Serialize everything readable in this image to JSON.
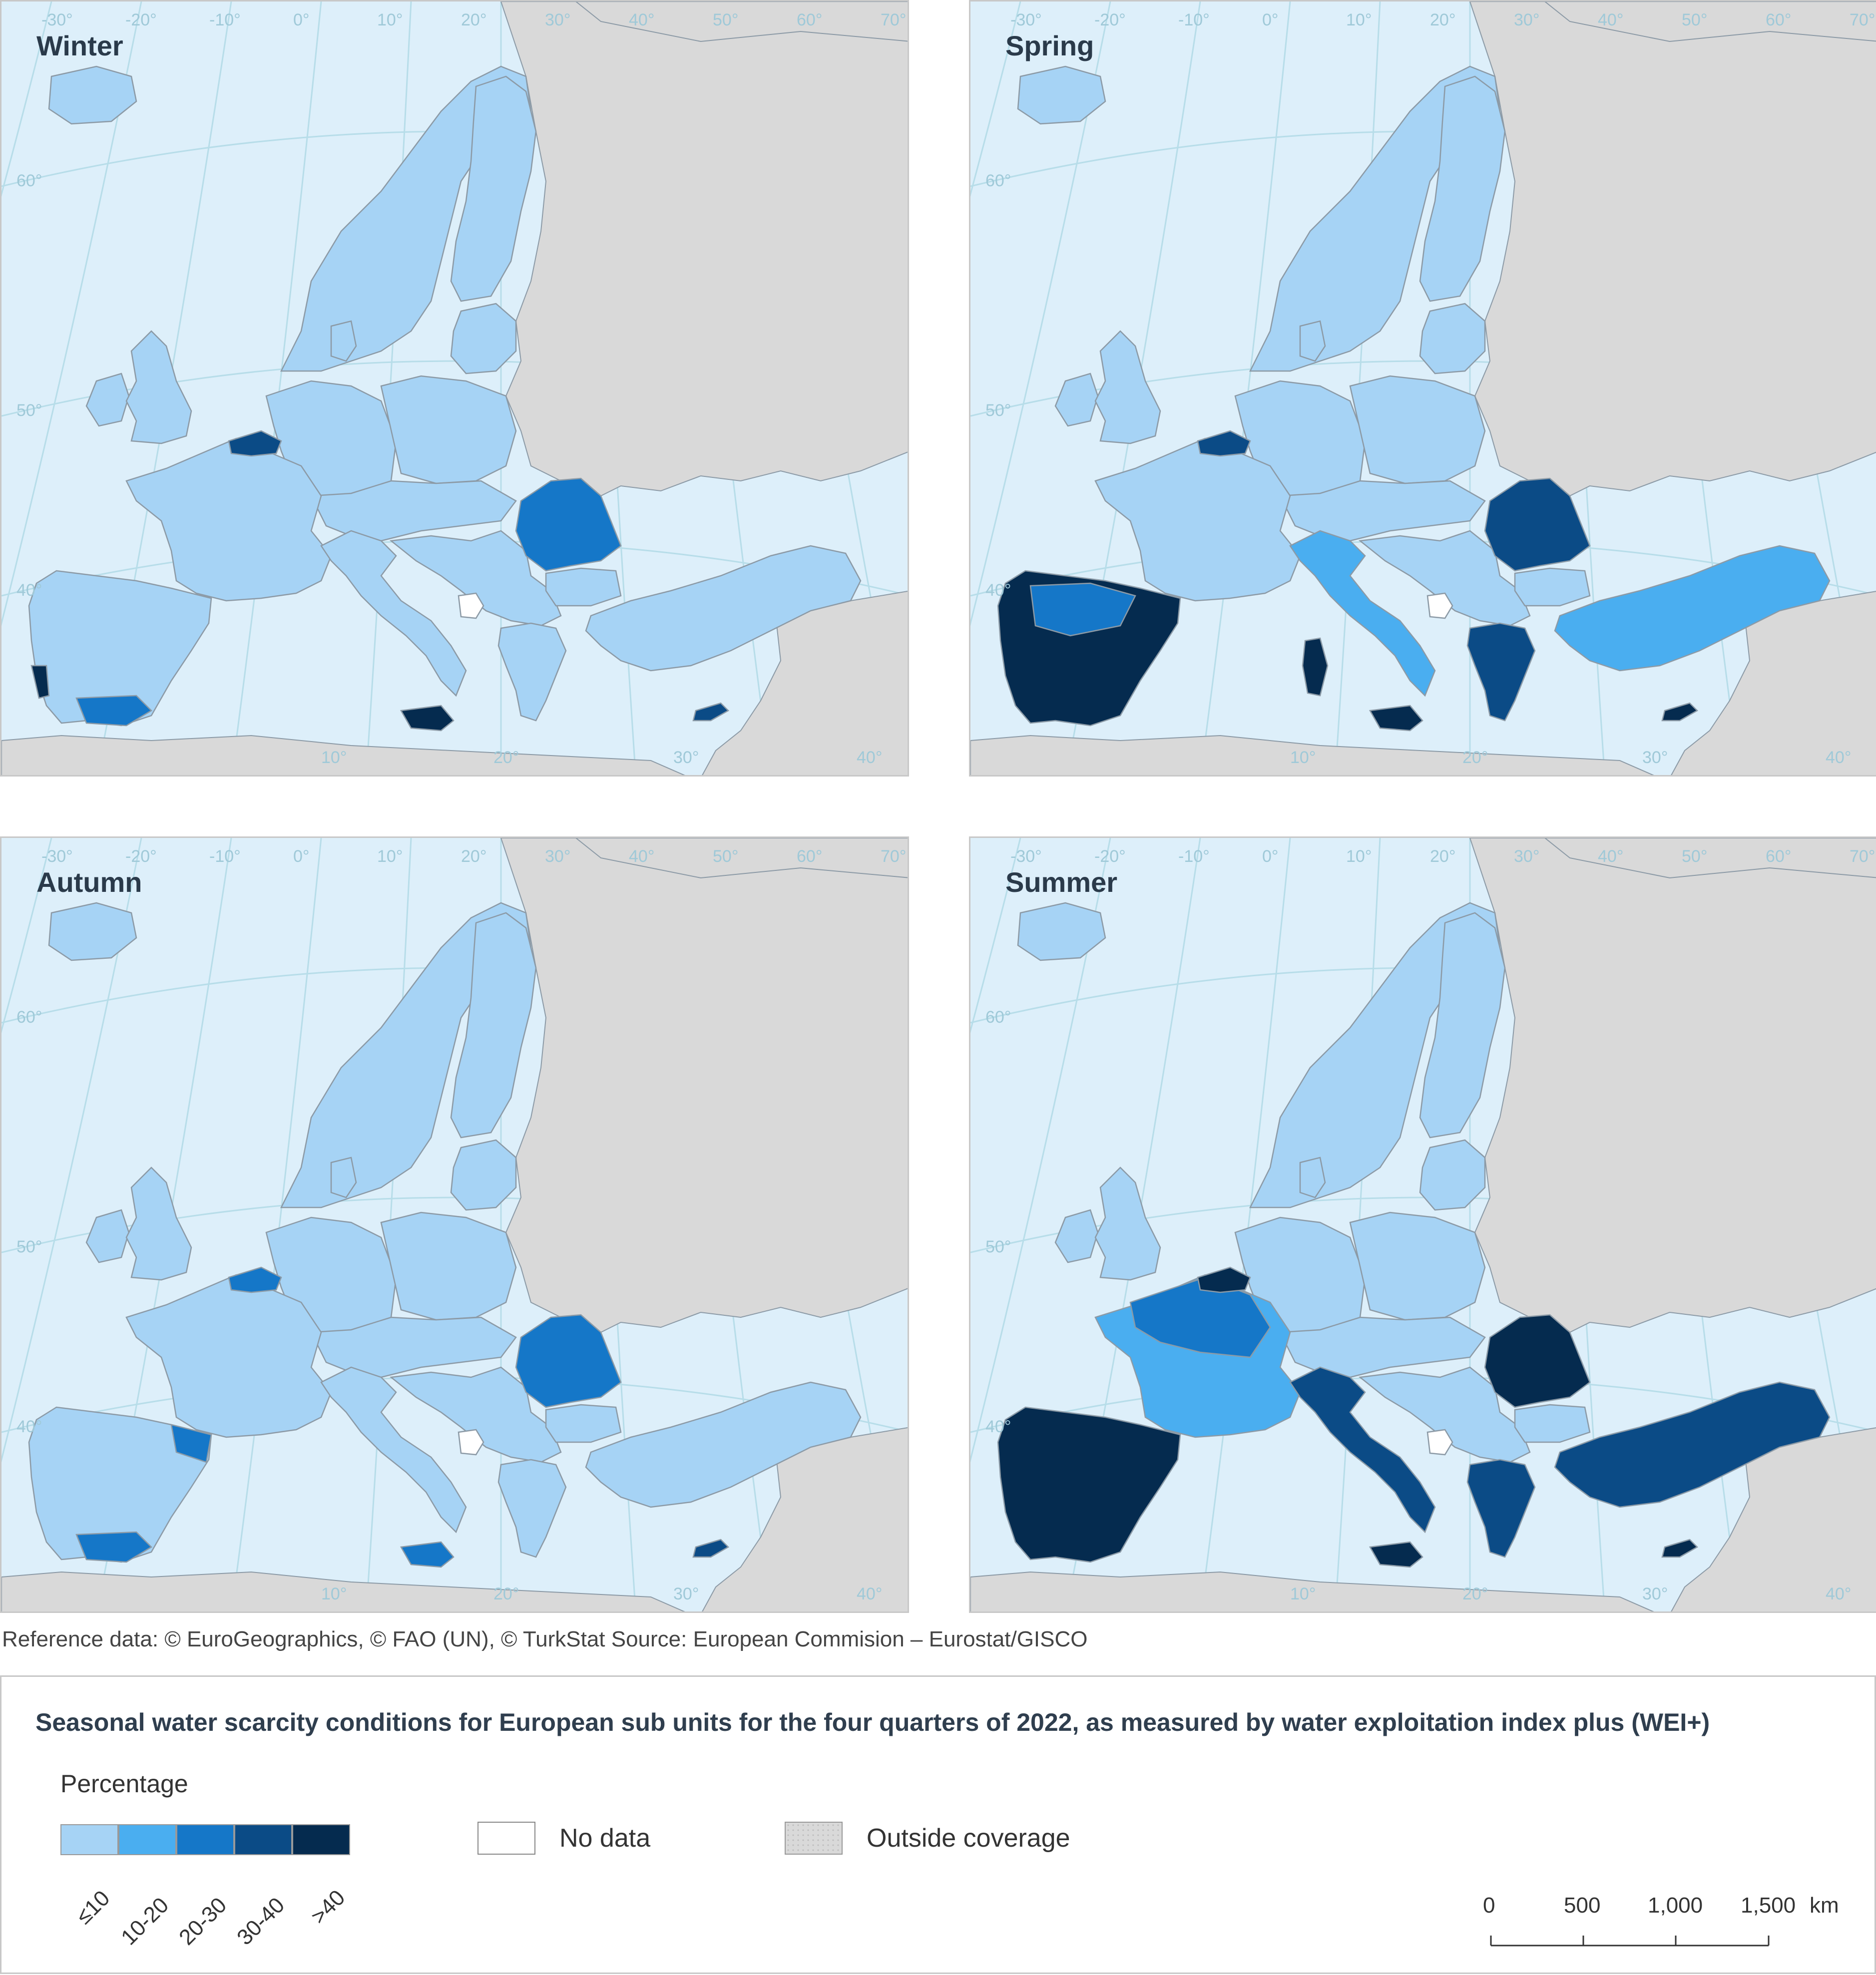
{
  "panels": [
    {
      "title": "Winter"
    },
    {
      "title": "Spring"
    },
    {
      "title": "Autumn"
    },
    {
      "title": "Summer"
    }
  ],
  "graticule": {
    "top_longitudes": [
      "-30°",
      "-20°",
      "-10°",
      "0°",
      "10°",
      "20°",
      "30°",
      "40°",
      "50°",
      "60°",
      "70°"
    ],
    "left_latitudes": [
      "60°",
      "50°",
      "40°"
    ],
    "bottom_longitudes": [
      "10°",
      "20°",
      "30°",
      "40°"
    ]
  },
  "source_text": "Reference data: © EuroGeographics, © FAO (UN), © TurkStat Source: European Commision – Eurostat/GISCO",
  "legend": {
    "title": "Seasonal water scarcity conditions for European sub units for the four quarters of 2022, as measured by water exploitation index plus (WEI+)",
    "subtitle": "Percentage",
    "classes": [
      {
        "label": "≤10",
        "color": "#a6d3f5"
      },
      {
        "label": "10-20",
        "color": "#4aaef0"
      },
      {
        "label": "20-30",
        "color": "#1577c8"
      },
      {
        "label": "30-40",
        "color": "#0b4b86"
      },
      {
        "label": ">40",
        "color": "#052b4f"
      }
    ],
    "no_data": "No data",
    "outside_coverage": "Outside coverage",
    "no_data_color": "#ffffff",
    "outside_color": "#d9d9d9"
  },
  "scale_bar": {
    "ticks": [
      "0",
      "500",
      "1,000",
      "1,500"
    ],
    "unit": "km"
  },
  "colors": {
    "sea": "#ddeffa",
    "outside": "#d9d9d9",
    "graticule": "#b7dde9",
    "border": "#8c9aa6"
  },
  "region_classes": {
    "winter": {
      "iberia": "≤10",
      "s_portugal": ">40",
      "andalusia": "20-30",
      "france": "≤10",
      "benelux": "30-40",
      "italy": "≤10",
      "sicily": ">40",
      "romania": "20-30",
      "greece": "≤10",
      "cyprus": "30-40",
      "turkey": "≤10"
    },
    "spring": {
      "iberia": ">40",
      "n_spain": "20-30",
      "france": "≤10",
      "benelux": "30-40",
      "italy": "10-20",
      "sicily": ">40",
      "sardinia": ">40",
      "romania": "30-40",
      "greece": "30-40",
      "cyprus": ">40",
      "turkey": "10-20"
    },
    "autumn": {
      "iberia": "≤10",
      "catalonia": "20-30",
      "andalusia": "20-30",
      "france": "≤10",
      "benelux": "20-30",
      "italy": "≤10",
      "sicily": "20-30",
      "romania": "20-30",
      "greece": "≤10",
      "cyprus": "30-40",
      "turkey": "≤10"
    },
    "summer": {
      "iberia": ">40",
      "france": "10-20",
      "n_france": "20-30",
      "benelux": ">40",
      "italy": "30-40",
      "sicily": ">40",
      "romania": ">40",
      "greece": "30-40",
      "cyprus": ">40",
      "turkey": "30-40"
    }
  }
}
